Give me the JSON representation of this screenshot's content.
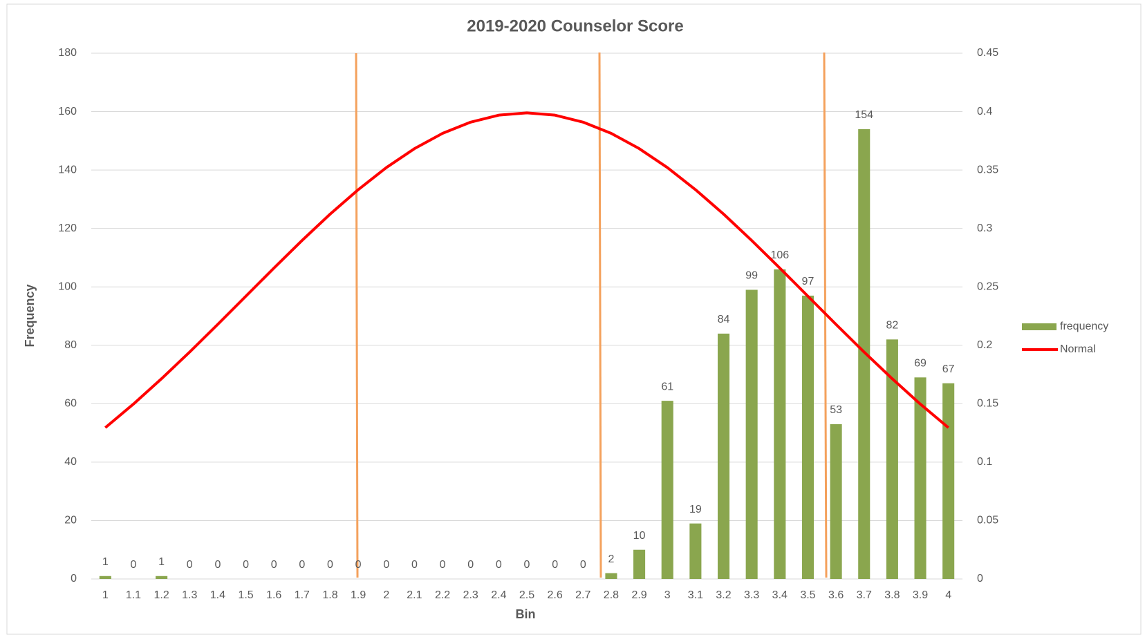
{
  "chart_data": {
    "type": "bar",
    "title": "2019-2020 Counselor Score",
    "x_label": "Bin",
    "y_label": "Frequency",
    "categories": [
      "1",
      "1.1",
      "1.2",
      "1.3",
      "1.4",
      "1.5",
      "1.6",
      "1.7",
      "1.8",
      "1.9",
      "2",
      "2.1",
      "2.2",
      "2.3",
      "2.4",
      "2.5",
      "2.6",
      "2.7",
      "2.8",
      "2.9",
      "3",
      "3.1",
      "3.2",
      "3.3",
      "3.4",
      "3.5",
      "3.6",
      "3.7",
      "3.8",
      "3.9",
      "4"
    ],
    "series": [
      {
        "name": "frequency",
        "type": "bar",
        "color": "#8aa64e",
        "axis": "y",
        "values": [
          1,
          0,
          1,
          0,
          0,
          0,
          0,
          0,
          0,
          0,
          0,
          0,
          0,
          0,
          0,
          0,
          0,
          0,
          2,
          10,
          61,
          19,
          84,
          99,
          106,
          97,
          53,
          154,
          82,
          69,
          67
        ]
      },
      {
        "name": "Normal",
        "type": "line",
        "color": "#ff0000",
        "axis": "y2",
        "values": [
          0.1295,
          0.1497,
          0.1714,
          0.1942,
          0.2179,
          0.242,
          0.2661,
          0.2897,
          0.3123,
          0.3332,
          0.3521,
          0.3683,
          0.3814,
          0.391,
          0.397,
          0.3989,
          0.397,
          0.391,
          0.3814,
          0.3683,
          0.3521,
          0.3332,
          0.3123,
          0.2897,
          0.2661,
          0.242,
          0.2179,
          0.1942,
          0.1714,
          0.1497,
          0.1295
        ]
      }
    ],
    "ylim": [
      0,
      180
    ],
    "yticks": [
      0,
      20,
      40,
      60,
      80,
      100,
      120,
      140,
      160,
      180
    ],
    "y2lim": [
      0,
      0.45
    ],
    "y2ticks": [
      0,
      0.05,
      0.1,
      0.15,
      0.2,
      0.25,
      0.3,
      0.35,
      0.4,
      0.45
    ],
    "grid": true,
    "legend": "right"
  }
}
